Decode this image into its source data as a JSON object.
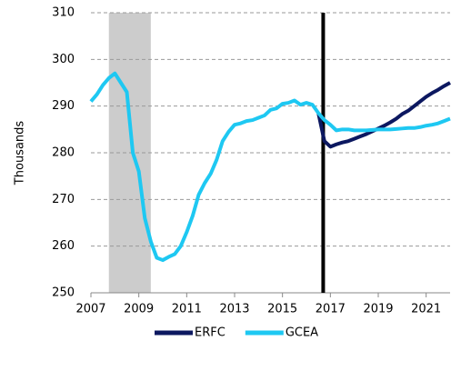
{
  "chart_data": {
    "type": "line",
    "y_label": "Thousands",
    "xlim": [
      2007,
      2022
    ],
    "xticks": [
      2007,
      2009,
      2011,
      2013,
      2015,
      2017,
      2019,
      2021
    ],
    "ylim": [
      250,
      310
    ],
    "yticks": [
      250,
      260,
      270,
      280,
      290,
      300,
      310
    ],
    "grid": true,
    "legend": "bottom",
    "shaded_range": [
      2007.75,
      2009.5
    ],
    "vline": 2016.7,
    "series": [
      {
        "name": "ERFC",
        "color": "#0c1860",
        "x": [
          2016.5,
          2016.75,
          2017,
          2017.25,
          2017.5,
          2017.75,
          2018,
          2018.25,
          2018.5,
          2018.75,
          2019,
          2019.25,
          2019.5,
          2019.75,
          2020,
          2020.25,
          2020.5,
          2020.75,
          2021,
          2021.25,
          2021.5,
          2021.75,
          2022
        ],
        "values": [
          288.5,
          282.5,
          281.3,
          281.8,
          282.2,
          282.5,
          283,
          283.5,
          284,
          284.6,
          285.2,
          285.8,
          286.5,
          287.3,
          288.3,
          289,
          290,
          291,
          292,
          292.8,
          293.5,
          294.3,
          295
        ]
      },
      {
        "name": "GCEA",
        "color": "#1ec8f2",
        "x": [
          2007,
          2007.25,
          2007.5,
          2007.75,
          2008,
          2008.25,
          2008.5,
          2008.75,
          2009,
          2009.25,
          2009.5,
          2009.75,
          2010,
          2010.25,
          2010.5,
          2010.75,
          2011,
          2011.25,
          2011.5,
          2011.75,
          2012,
          2012.25,
          2012.5,
          2012.75,
          2013,
          2013.25,
          2013.5,
          2013.75,
          2014,
          2014.25,
          2014.5,
          2014.75,
          2015,
          2015.25,
          2015.5,
          2015.75,
          2016,
          2016.25,
          2016.5,
          2016.75,
          2017,
          2017.25,
          2017.5,
          2017.75,
          2018,
          2018.25,
          2018.5,
          2018.75,
          2019,
          2019.25,
          2019.5,
          2019.75,
          2020,
          2020.25,
          2020.5,
          2020.75,
          2021,
          2021.25,
          2021.5,
          2021.75,
          2022
        ],
        "values": [
          291,
          292.5,
          294.5,
          296,
          297,
          295,
          293,
          280,
          276,
          266,
          261,
          257.5,
          257,
          257.7,
          258.3,
          260,
          263,
          266.5,
          271,
          273.5,
          275.5,
          278.5,
          282.5,
          284.5,
          286,
          286.3,
          286.8,
          287,
          287.5,
          288,
          289.2,
          289.5,
          290.5,
          290.7,
          291.2,
          290.3,
          290.7,
          290.3,
          288.5,
          287,
          286,
          284.8,
          285,
          285,
          284.8,
          284.8,
          284.8,
          284.9,
          285,
          285,
          285,
          285.1,
          285.2,
          285.3,
          285.3,
          285.5,
          285.8,
          286,
          286.3,
          286.8,
          287.3
        ]
      }
    ]
  }
}
